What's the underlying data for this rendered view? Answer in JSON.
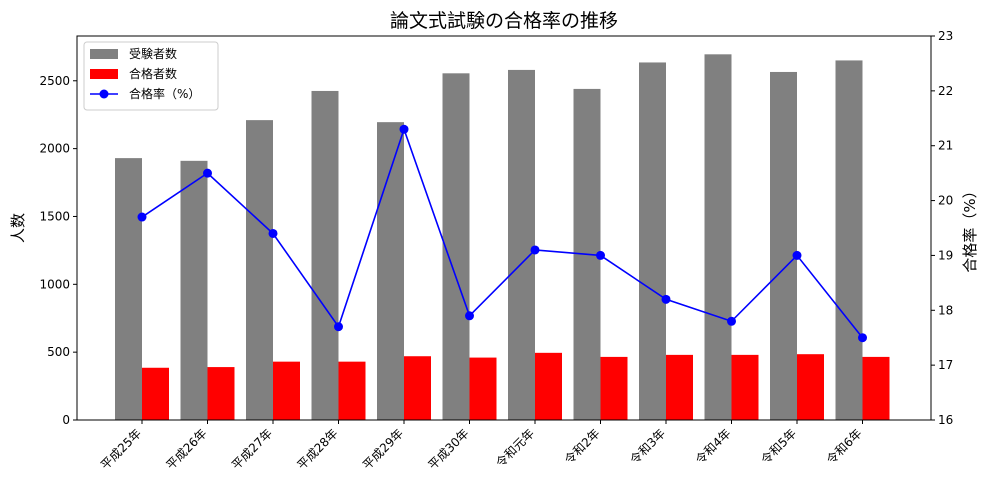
{
  "chart_data": {
    "type": "bar",
    "title": "論文式試験の合格率の推移",
    "xlabel": "",
    "ylabel": "人数",
    "y2label": "合格率（%）",
    "ylim": [
      0,
      2830
    ],
    "y2lim": [
      16,
      23
    ],
    "yticks": [
      0,
      500,
      1000,
      1500,
      2000,
      2500
    ],
    "y2ticks": [
      16,
      17,
      18,
      19,
      20,
      21,
      22,
      23
    ],
    "categories": [
      "平成25年",
      "平成26年",
      "平成27年",
      "平成28年",
      "平成29年",
      "平成30年",
      "令和元年",
      "令和2年",
      "令和3年",
      "令和4年",
      "令和5年",
      "令和6年"
    ],
    "series": [
      {
        "name": "受験者数",
        "kind": "bar",
        "axis": "left",
        "color": "#808080",
        "values": [
          1930,
          1910,
          2210,
          2425,
          2195,
          2555,
          2580,
          2440,
          2635,
          2695,
          2565,
          2650
        ]
      },
      {
        "name": "合格者数",
        "kind": "bar",
        "axis": "left",
        "color": "#ff0000",
        "values": [
          385,
          390,
          430,
          430,
          470,
          460,
          495,
          465,
          480,
          480,
          485,
          465
        ]
      },
      {
        "name": "合格率（%）",
        "kind": "line",
        "axis": "right",
        "color": "#0000ff",
        "values": [
          19.7,
          20.5,
          19.4,
          17.7,
          21.3,
          17.9,
          19.1,
          19.0,
          18.2,
          17.8,
          19.0,
          17.5
        ]
      }
    ],
    "grid": false,
    "legend": "top-left"
  }
}
